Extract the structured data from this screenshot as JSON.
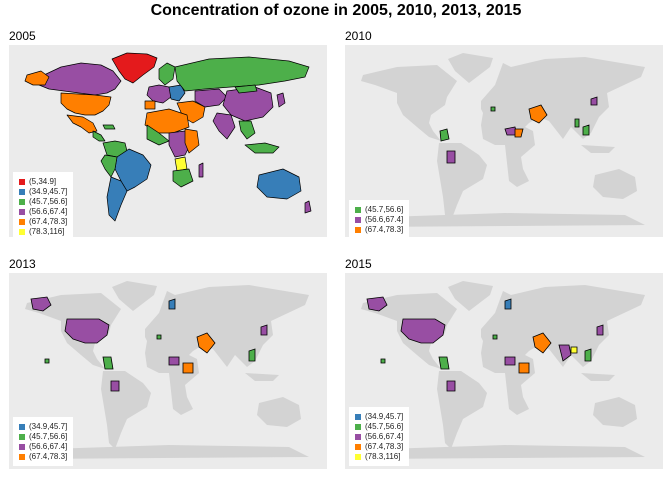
{
  "title": "Concentration of ozone in 2005, 2010, 2013, 2015",
  "colors": {
    "background": "#ebebeb",
    "no_data": "#d3d3d3",
    "(5,34.9]": "#e41a1c",
    "(34.9,45.7]": "#377eb8",
    "(45.7,56.6]": "#4daf4a",
    "(56.6,67.4]": "#984ea3",
    "(67.4,78.3]": "#ff7f00",
    "(78.3,116]": "#ffff33"
  },
  "panels": [
    {
      "title": "2005",
      "legend": [
        "(5,34.9]",
        "(34.9,45.7]",
        "(45.7,56.6]",
        "(56.6,67.4]",
        "(67.4,78.3]",
        "(78.3,116]"
      ]
    },
    {
      "title": "2010",
      "legend": [
        "(45.7,56.6]",
        "(56.6,67.4]",
        "(67.4,78.3]"
      ]
    },
    {
      "title": "2013",
      "legend": [
        "(34.9,45.7]",
        "(45.7,56.6]",
        "(56.6,67.4]",
        "(67.4,78.3]"
      ]
    },
    {
      "title": "2015",
      "legend": [
        "(34.9,45.7]",
        "(45.7,56.6]",
        "(56.6,67.4]",
        "(67.4,78.3]",
        "(78.3,116]"
      ]
    }
  ]
}
